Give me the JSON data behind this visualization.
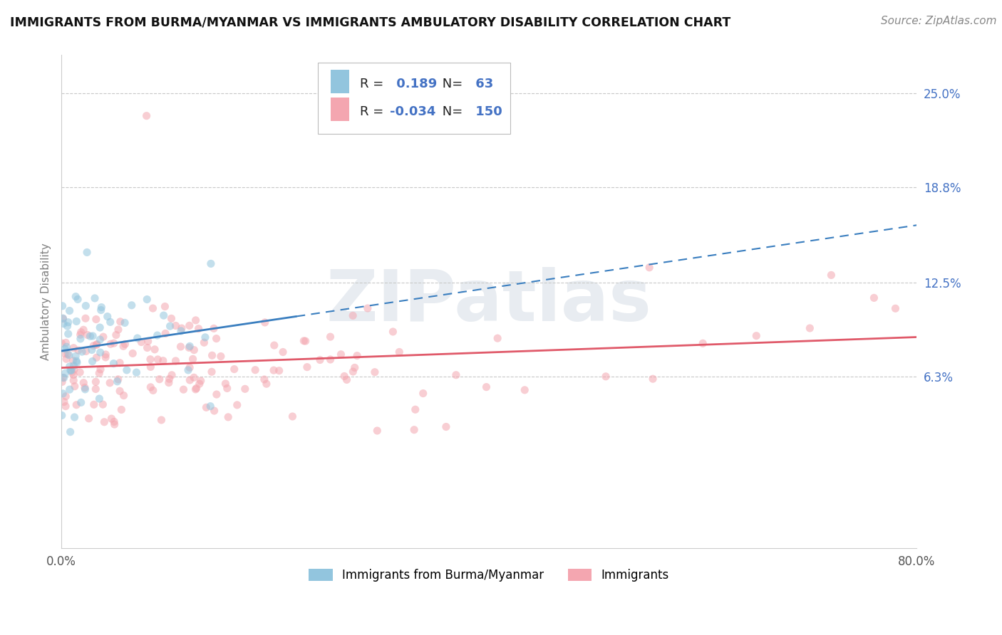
{
  "title": "IMMIGRANTS FROM BURMA/MYANMAR VS IMMIGRANTS AMBULATORY DISABILITY CORRELATION CHART",
  "source": "Source: ZipAtlas.com",
  "ylabel": "Ambulatory Disability",
  "series1_label": "Immigrants from Burma/Myanmar",
  "series2_label": "Immigrants",
  "series1_color": "#92c5de",
  "series2_color": "#f4a6b0",
  "series1_R": 0.189,
  "series1_N": 63,
  "series2_R": -0.034,
  "series2_N": 150,
  "xlim": [
    0.0,
    0.8
  ],
  "ylim": [
    -0.05,
    0.275
  ],
  "yticks": [
    0.063,
    0.125,
    0.188,
    0.25
  ],
  "ytick_labels": [
    "6.3%",
    "12.5%",
    "18.8%",
    "25.0%"
  ],
  "xticks": [
    0.0,
    0.1,
    0.2,
    0.3,
    0.4,
    0.5,
    0.6,
    0.7,
    0.8
  ],
  "xtick_labels": [
    "0.0%",
    "",
    "",
    "",
    "",
    "",
    "",
    "",
    "80.0%"
  ],
  "watermark": "ZIPatlas",
  "marker_size": 65,
  "marker_alpha": 0.55,
  "line1_color": "#3a7ebf",
  "line2_color": "#e05a6a",
  "legend_text_color": "#4472c4",
  "seed": 42
}
